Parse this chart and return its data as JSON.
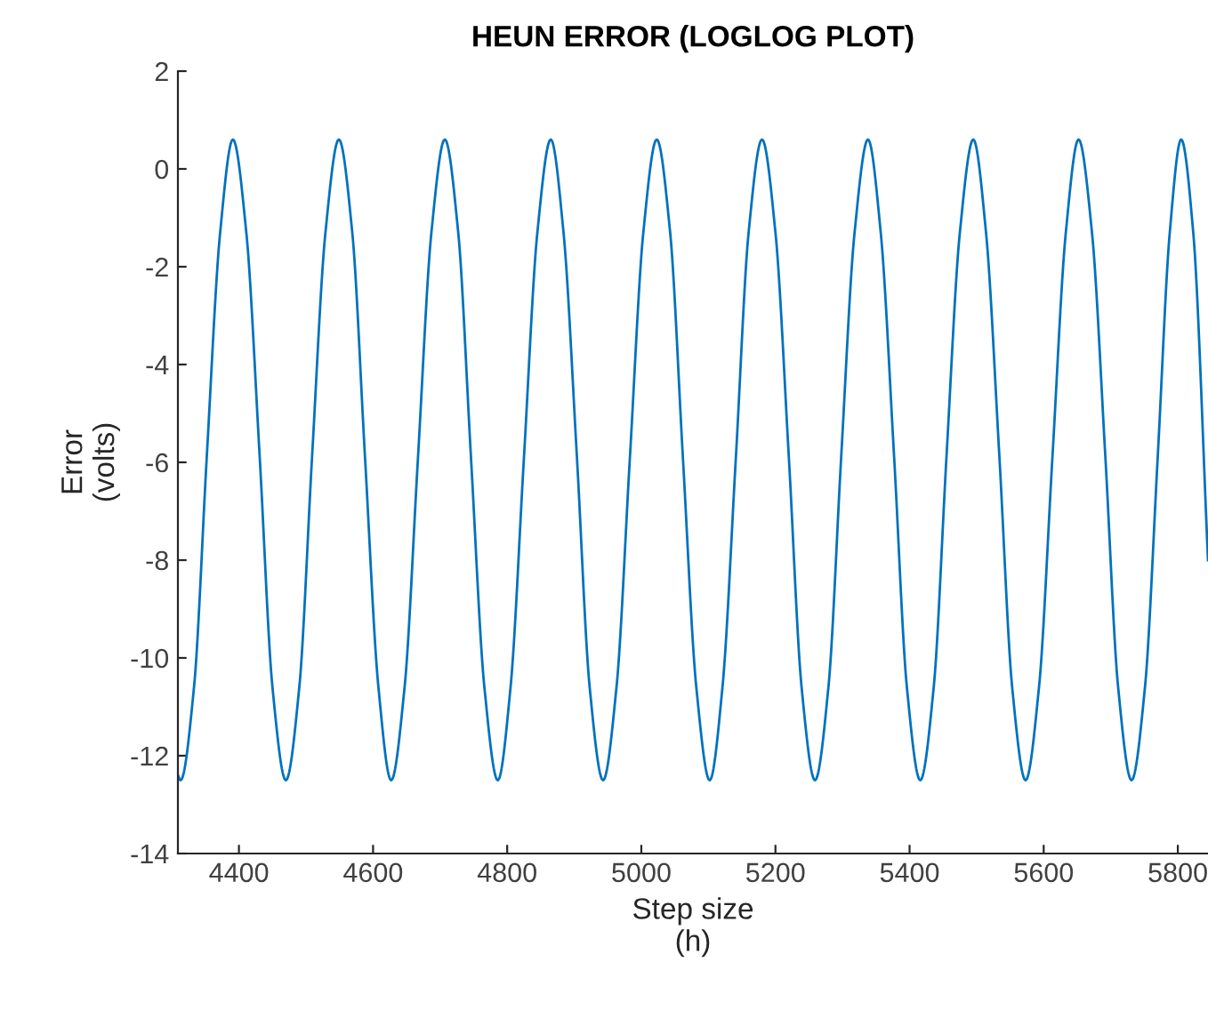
{
  "chart_data": {
    "type": "line",
    "title": "HEUN ERROR (LOGLOG PLOT)",
    "xlabel": "Step size\n(h)",
    "ylabel": "Error\n(volts)",
    "xlim": [
      4309,
      5845
    ],
    "ylim": [
      -14,
      2
    ],
    "xticks": [
      4400,
      4600,
      4800,
      5000,
      5200,
      5400,
      5600,
      5800
    ],
    "yticks": [
      -14,
      -12,
      -10,
      -8,
      -6,
      -4,
      -2,
      0,
      2
    ],
    "grid": false,
    "legend": false,
    "series": [
      {
        "color": "#0072bd",
        "x": [
          4309,
          4313,
          4333,
          4352,
          4372,
          4391,
          4411,
          4431,
          4450,
          4470,
          4490,
          4509,
          4529,
          4549,
          4569,
          4588,
          4608,
          4627,
          4647,
          4667,
          4687,
          4707,
          4727,
          4746,
          4766,
          4786,
          4805,
          4825,
          4845,
          4865,
          4884,
          4904,
          4923,
          4943,
          4963,
          4983,
          5003,
          5023,
          5043,
          5062,
          5082,
          5102,
          5121,
          5141,
          5160,
          5180,
          5200,
          5220,
          5239,
          5259,
          5279,
          5298,
          5318,
          5338,
          5357,
          5377,
          5396,
          5416,
          5436,
          5455,
          5475,
          5495,
          5514,
          5534,
          5553,
          5573,
          5593,
          5613,
          5633,
          5652,
          5672,
          5692,
          5711,
          5731,
          5751,
          5770,
          5788,
          5805,
          5823,
          5845
        ],
        "values": [
          -12.4,
          -12.5,
          -10.6,
          -5.9,
          -1.3,
          0.6,
          -1.3,
          -5.9,
          -10.6,
          -12.5,
          -10.6,
          -5.9,
          -1.3,
          0.6,
          -1.3,
          -5.9,
          -10.6,
          -12.5,
          -10.6,
          -5.9,
          -1.3,
          0.6,
          -1.3,
          -5.9,
          -10.6,
          -12.5,
          -10.6,
          -5.9,
          -1.3,
          0.6,
          -1.3,
          -5.9,
          -10.6,
          -12.5,
          -10.6,
          -5.9,
          -1.3,
          0.6,
          -1.3,
          -5.9,
          -10.6,
          -12.5,
          -10.6,
          -5.9,
          -1.3,
          0.6,
          -1.3,
          -5.9,
          -10.6,
          -12.5,
          -10.6,
          -5.9,
          -1.3,
          0.6,
          -1.3,
          -5.9,
          -10.6,
          -12.5,
          -10.6,
          -5.9,
          -1.3,
          0.6,
          -1.3,
          -5.9,
          -10.6,
          -12.5,
          -10.6,
          -5.9,
          -1.3,
          0.6,
          -1.3,
          -5.9,
          -10.6,
          -12.5,
          -10.6,
          -5.9,
          -1.3,
          0.6,
          -1.3,
          -8
        ]
      }
    ]
  }
}
